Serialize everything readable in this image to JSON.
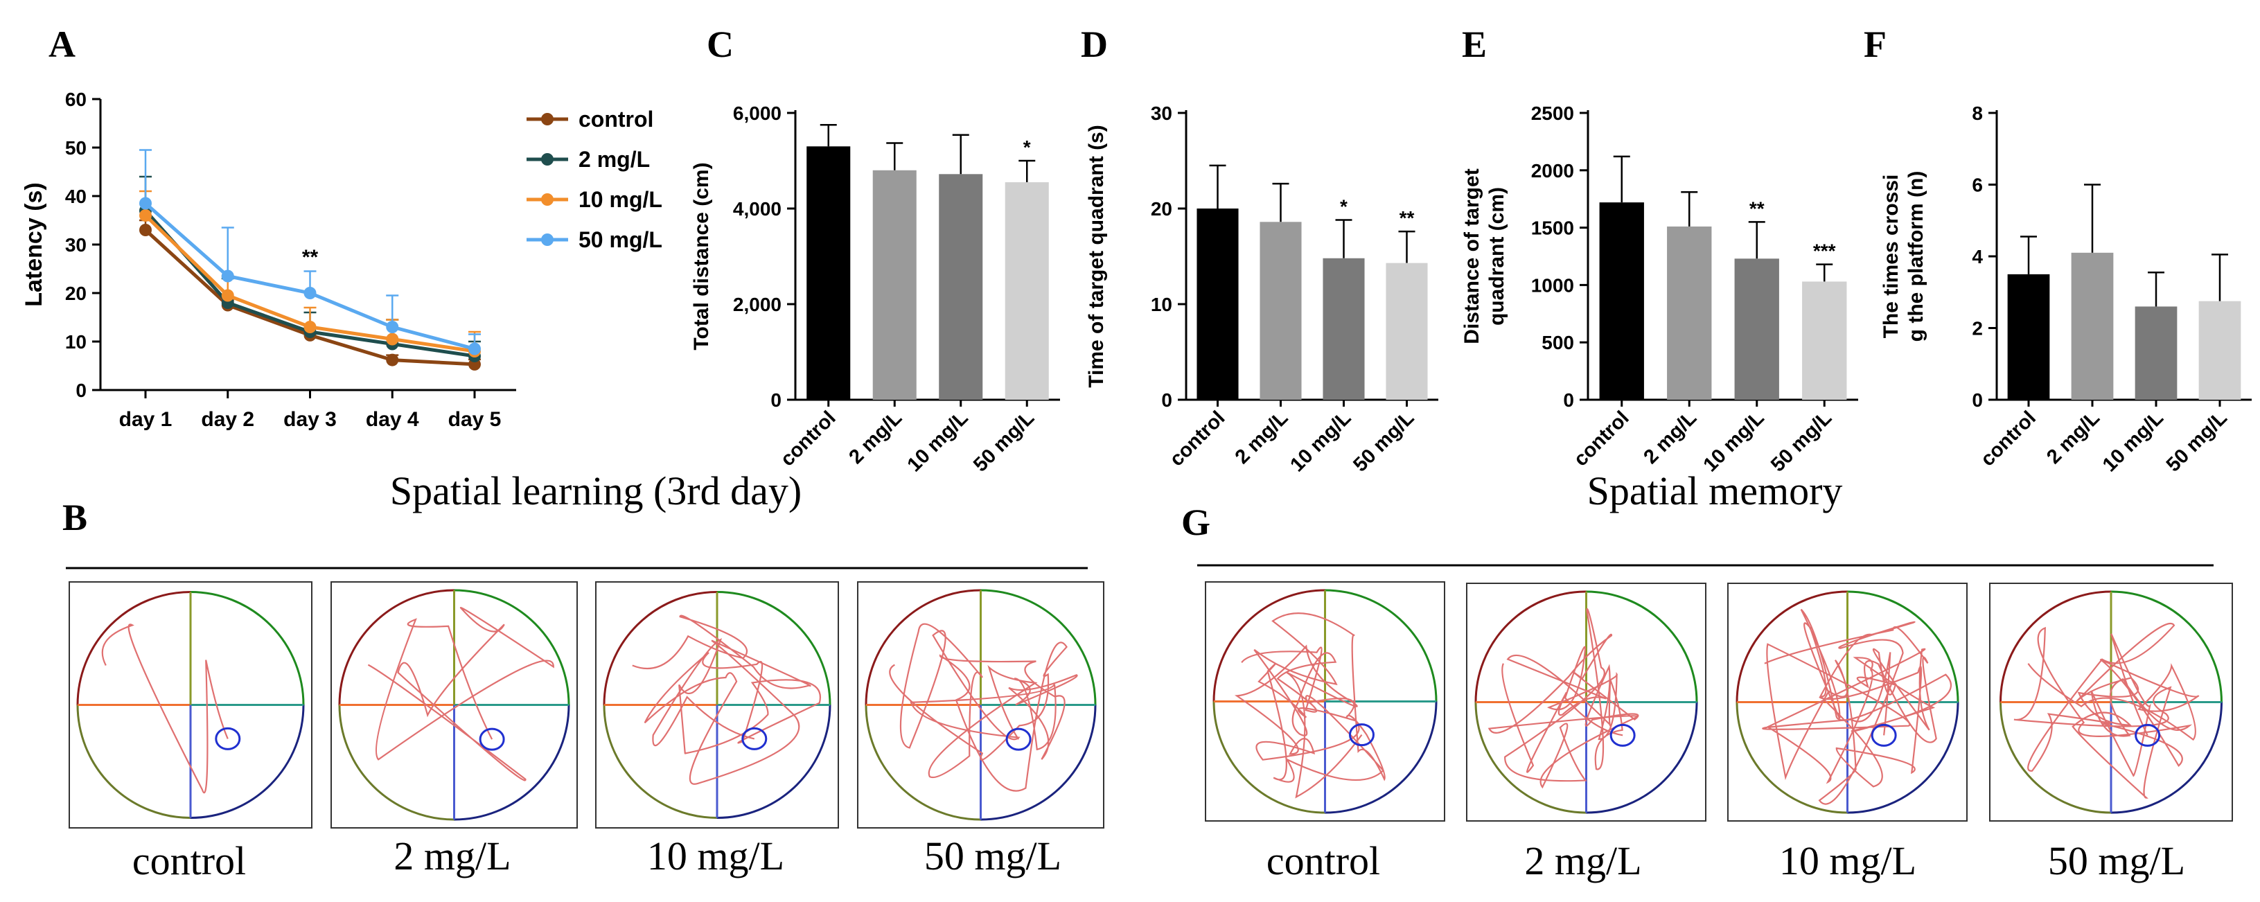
{
  "panels": {
    "A": "A",
    "B": "B",
    "C": "C",
    "D": "D",
    "E": "E",
    "F": "F",
    "G": "G"
  },
  "colors": {
    "control": "#8B4513",
    "2 mg/L": "#1F4E4E",
    "10 mg/L": "#F28E2B",
    "50 mg/L": "#5AA9F0",
    "bar_control": "#000000",
    "bar_2": "#9A9A9A",
    "bar_10": "#7A7A7A",
    "bar_50": "#D0D0D0"
  },
  "chart_data": [
    {
      "id": "A",
      "type": "line",
      "title": "",
      "xlabel": "",
      "ylabel": "Latency (s)",
      "ylim": [
        0,
        60
      ],
      "yticks": [
        0,
        10,
        20,
        30,
        40,
        50,
        60
      ],
      "categories": [
        "day 1",
        "day 2",
        "day 3",
        "day 4",
        "day 5"
      ],
      "legend": "right",
      "series": [
        {
          "name": "control",
          "values": [
            33,
            17.5,
            11.3,
            6.2,
            5.3
          ],
          "err": [
            2,
            1,
            1.5,
            1,
            1
          ]
        },
        {
          "name": "2 mg/L",
          "values": [
            37,
            18,
            12,
            9.5,
            7
          ],
          "err": [
            7,
            5,
            4,
            5,
            3
          ]
        },
        {
          "name": "10 mg/L",
          "values": [
            36,
            19.5,
            13,
            10.5,
            8
          ],
          "err": [
            5,
            4,
            4,
            4,
            4
          ]
        },
        {
          "name": "50 mg/L",
          "values": [
            38.5,
            23.5,
            20,
            13,
            8.5
          ],
          "err": [
            11,
            10,
            4.5,
            6.5,
            3
          ]
        }
      ],
      "annotations": [
        {
          "category": "day 3",
          "text": "**"
        }
      ]
    },
    {
      "id": "C",
      "type": "bar",
      "ylabel": "Total distance (cm)",
      "ylim": [
        0,
        6000
      ],
      "yticks": [
        0,
        2000,
        4000,
        6000
      ],
      "ytick_labels": [
        "0",
        "2,000",
        "4,000",
        "6,000"
      ],
      "categories": [
        "control",
        "2 mg/L",
        "10 mg/L",
        "50 mg/L"
      ],
      "values": [
        5300,
        4800,
        4720,
        4550
      ],
      "err": [
        450,
        570,
        820,
        450
      ],
      "sig": [
        "",
        "",
        "",
        "*"
      ]
    },
    {
      "id": "D",
      "type": "bar",
      "ylabel": "Time of target quadrant (s)",
      "ylim": [
        0,
        30
      ],
      "yticks": [
        0,
        10,
        20,
        30
      ],
      "ytick_labels": [
        "0",
        "10",
        "20",
        "30"
      ],
      "categories": [
        "control",
        "2 mg/L",
        "10 mg/L",
        "50 mg/L"
      ],
      "values": [
        20,
        18.6,
        14.8,
        14.3
      ],
      "err": [
        4.5,
        4,
        4,
        3.3
      ],
      "sig": [
        "",
        "",
        "*",
        "**"
      ]
    },
    {
      "id": "E",
      "type": "bar",
      "ylabel": "Distance of target quadrant (cm)",
      "ylim": [
        0,
        2500
      ],
      "yticks": [
        0,
        500,
        1000,
        1500,
        2000,
        2500
      ],
      "ytick_labels": [
        "0",
        "500",
        "1000",
        "1500",
        "2000",
        "2500"
      ],
      "categories": [
        "control",
        "2 mg/L",
        "10 mg/L",
        "50 mg/L"
      ],
      "values": [
        1720,
        1510,
        1230,
        1030
      ],
      "err": [
        400,
        300,
        320,
        150
      ],
      "sig": [
        "",
        "",
        "**",
        "***"
      ]
    },
    {
      "id": "F",
      "type": "bar",
      "ylabel": "The times crossing the platform (n)",
      "ylim": [
        0,
        8
      ],
      "yticks": [
        0,
        2,
        4,
        6,
        8
      ],
      "ytick_labels": [
        "0",
        "2",
        "4",
        "6",
        "8"
      ],
      "categories": [
        "control",
        "2 mg/L",
        "10 mg/L",
        "50 mg/L"
      ],
      "values": [
        3.5,
        4.1,
        2.6,
        2.75
      ],
      "err": [
        1.05,
        1.9,
        0.95,
        1.3
      ],
      "sig": [
        "",
        "",
        "",
        ""
      ]
    }
  ],
  "learning": {
    "title": "Spatial learning (3rd day)",
    "labels": [
      "control",
      "2 mg/L",
      "10 mg/L",
      "50 mg/L"
    ]
  },
  "memory": {
    "title": "Spatial memory",
    "labels": [
      "control",
      "2 mg/L",
      "10 mg/L",
      "50 mg/L"
    ]
  }
}
